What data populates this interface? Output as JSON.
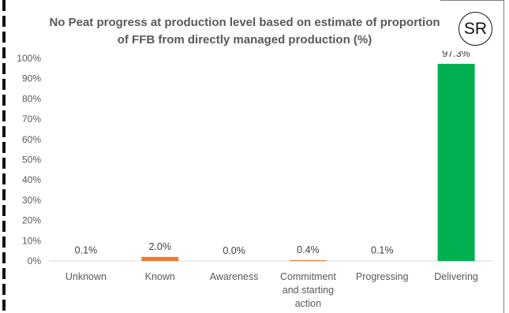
{
  "logo": {
    "text": "SR"
  },
  "chart_data": {
    "type": "bar",
    "title_lines": [
      "No Peat progress at production level based on estimate of proportion",
      "of FFB from directly managed production (%)"
    ],
    "categories": [
      [
        "Unknown"
      ],
      [
        "Known"
      ],
      [
        "Awareness"
      ],
      [
        "Commitment",
        "and starting",
        "action"
      ],
      [
        "Progressing"
      ],
      [
        "Delivering"
      ]
    ],
    "values": [
      0.1,
      2.0,
      0.0,
      0.4,
      0.1,
      97.3
    ],
    "data_labels": [
      "0.1%",
      "2.0%",
      "0.0%",
      "0.4%",
      "0.1%",
      "97.3%"
    ],
    "bar_colors": [
      "#ed7d31",
      "#ed7d31",
      "#ed7d31",
      "#ed7d31",
      "#ed7d31",
      "#00b050"
    ],
    "ylim": [
      0,
      100
    ],
    "y_ticks": [
      0,
      10,
      20,
      30,
      40,
      50,
      60,
      70,
      80,
      90,
      100
    ],
    "y_tick_labels": [
      "0%",
      "10%",
      "20%",
      "30%",
      "40%",
      "50%",
      "60%",
      "70%",
      "80%",
      "90%",
      "100%"
    ],
    "grid": false,
    "legend": "none"
  }
}
